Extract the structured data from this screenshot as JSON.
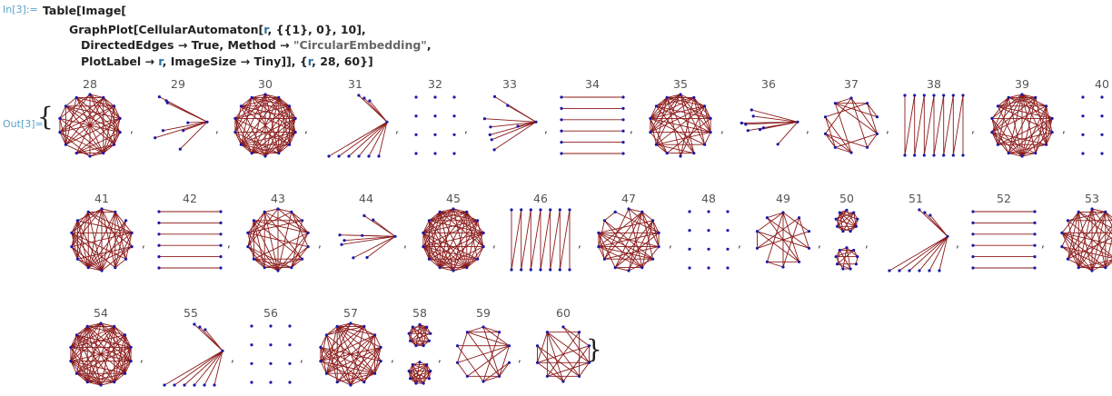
{
  "input_label": "In[3]:=",
  "output_label": "Out[3]=",
  "code_lines": [
    [
      {
        "t": "Table[Image["
      }
    ],
    [
      {
        "t": "GraphPlot[CellularAutomaton["
      },
      {
        "t": "r",
        "c": "sym"
      },
      {
        "t": ", {{1}, 0}, 10],"
      }
    ],
    [
      {
        "t": "DirectedEdges → True, Method → "
      },
      {
        "t": "\"CircularEmbedding\"",
        "c": "str"
      },
      {
        "t": ","
      }
    ],
    [
      {
        "t": "PlotLabel → "
      },
      {
        "t": "r",
        "c": "sym"
      },
      {
        "t": ", ImageSize → Tiny]], {"
      },
      {
        "t": "r",
        "c": "sym"
      },
      {
        "t": ", 28, 60}]"
      }
    ]
  ],
  "open_brace": "{",
  "close_brace": "}",
  "separator": ",",
  "colors": {
    "edge": "#8b1a1a",
    "vertex": "#1a1aa8",
    "label": "#5aa1c6"
  },
  "plots": [
    {
      "label": "28",
      "kind": "dense",
      "row": 0
    },
    {
      "label": "29",
      "kind": "star",
      "row": 0
    },
    {
      "label": "30",
      "kind": "dense-heavy",
      "row": 0
    },
    {
      "label": "31",
      "kind": "star-wide",
      "row": 0
    },
    {
      "label": "32",
      "kind": "dots",
      "row": 0
    },
    {
      "label": "33",
      "kind": "star-small",
      "row": 0
    },
    {
      "label": "34",
      "kind": "parallel",
      "row": 0
    },
    {
      "label": "35",
      "kind": "dense",
      "row": 0
    },
    {
      "label": "36",
      "kind": "star",
      "row": 0
    },
    {
      "label": "37",
      "kind": "dense-light",
      "row": 0
    },
    {
      "label": "38",
      "kind": "zigzag",
      "row": 0
    },
    {
      "label": "39",
      "kind": "dense",
      "row": 0
    },
    {
      "label": "40",
      "kind": "dots",
      "row": 0
    },
    {
      "label": "41",
      "kind": "dense",
      "row": 1
    },
    {
      "label": "42",
      "kind": "parallel",
      "row": 1
    },
    {
      "label": "43",
      "kind": "dense",
      "row": 1
    },
    {
      "label": "44",
      "kind": "star",
      "row": 1
    },
    {
      "label": "45",
      "kind": "dense-heavy",
      "row": 1
    },
    {
      "label": "46",
      "kind": "zigzag",
      "row": 1
    },
    {
      "label": "47",
      "kind": "dense",
      "row": 1
    },
    {
      "label": "48",
      "kind": "dots",
      "row": 1
    },
    {
      "label": "49",
      "kind": "dense-light",
      "row": 1
    },
    {
      "label": "50",
      "kind": "twin",
      "row": 1
    },
    {
      "label": "51",
      "kind": "star-wide",
      "row": 1
    },
    {
      "label": "52",
      "kind": "parallel",
      "row": 1
    },
    {
      "label": "53",
      "kind": "dense",
      "row": 1
    },
    {
      "label": "54",
      "kind": "dense-heavy",
      "row": 2
    },
    {
      "label": "55",
      "kind": "star-wide",
      "row": 2
    },
    {
      "label": "56",
      "kind": "dots",
      "row": 2
    },
    {
      "label": "57",
      "kind": "dense",
      "row": 2
    },
    {
      "label": "58",
      "kind": "twin",
      "row": 2
    },
    {
      "label": "59",
      "kind": "dense-light",
      "row": 2
    },
    {
      "label": "60",
      "kind": "dense-light",
      "row": 2
    }
  ]
}
